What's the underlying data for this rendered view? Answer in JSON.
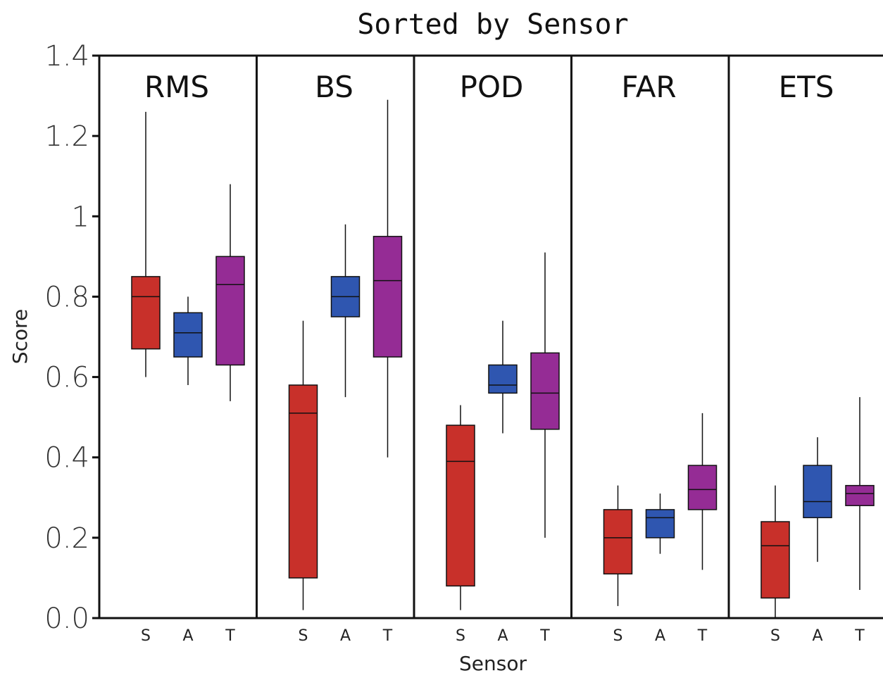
{
  "chart_data": {
    "type": "box",
    "title": "Sorted by Sensor",
    "xlabel": "Sensor",
    "ylabel": "Score",
    "ylim": [
      0.0,
      1.4
    ],
    "yticks": [
      "0.0",
      "0.2",
      "0.4",
      "0.6",
      "0.8",
      "1",
      "1.2",
      "1.4"
    ],
    "categories": [
      "S",
      "A",
      "T"
    ],
    "series_colors": {
      "S": "#c8302a",
      "A": "#2f56b0",
      "T": "#952c95"
    },
    "panels": [
      {
        "label": "RMS",
        "boxes": [
          {
            "category": "S",
            "min": 0.6,
            "q1": 0.67,
            "median": 0.8,
            "q3": 0.85,
            "max": 1.26
          },
          {
            "category": "A",
            "min": 0.58,
            "q1": 0.65,
            "median": 0.71,
            "q3": 0.76,
            "max": 0.8
          },
          {
            "category": "T",
            "min": 0.54,
            "q1": 0.63,
            "median": 0.83,
            "q3": 0.9,
            "max": 1.08
          }
        ]
      },
      {
        "label": "BS",
        "boxes": [
          {
            "category": "S",
            "min": 0.02,
            "q1": 0.1,
            "median": 0.51,
            "q3": 0.58,
            "max": 0.74
          },
          {
            "category": "A",
            "min": 0.55,
            "q1": 0.75,
            "median": 0.8,
            "q3": 0.85,
            "max": 0.98
          },
          {
            "category": "T",
            "min": 0.4,
            "q1": 0.65,
            "median": 0.84,
            "q3": 0.95,
            "max": 1.29
          }
        ]
      },
      {
        "label": "POD",
        "boxes": [
          {
            "category": "S",
            "min": 0.02,
            "q1": 0.08,
            "median": 0.39,
            "q3": 0.48,
            "max": 0.53
          },
          {
            "category": "A",
            "min": 0.46,
            "q1": 0.56,
            "median": 0.58,
            "q3": 0.63,
            "max": 0.74
          },
          {
            "category": "T",
            "min": 0.2,
            "q1": 0.47,
            "median": 0.56,
            "q3": 0.66,
            "max": 0.91
          }
        ]
      },
      {
        "label": "FAR",
        "boxes": [
          {
            "category": "S",
            "min": 0.03,
            "q1": 0.11,
            "median": 0.2,
            "q3": 0.27,
            "max": 0.33
          },
          {
            "category": "A",
            "min": 0.16,
            "q1": 0.2,
            "median": 0.25,
            "q3": 0.27,
            "max": 0.31
          },
          {
            "category": "T",
            "min": 0.12,
            "q1": 0.27,
            "median": 0.32,
            "q3": 0.38,
            "max": 0.51
          }
        ]
      },
      {
        "label": "ETS",
        "boxes": [
          {
            "category": "S",
            "min": 0.0,
            "q1": 0.05,
            "median": 0.18,
            "q3": 0.24,
            "max": 0.33
          },
          {
            "category": "A",
            "min": 0.14,
            "q1": 0.25,
            "median": 0.29,
            "q3": 0.38,
            "max": 0.45
          },
          {
            "category": "T",
            "min": 0.07,
            "q1": 0.28,
            "median": 0.31,
            "q3": 0.33,
            "max": 0.55
          }
        ]
      }
    ]
  }
}
